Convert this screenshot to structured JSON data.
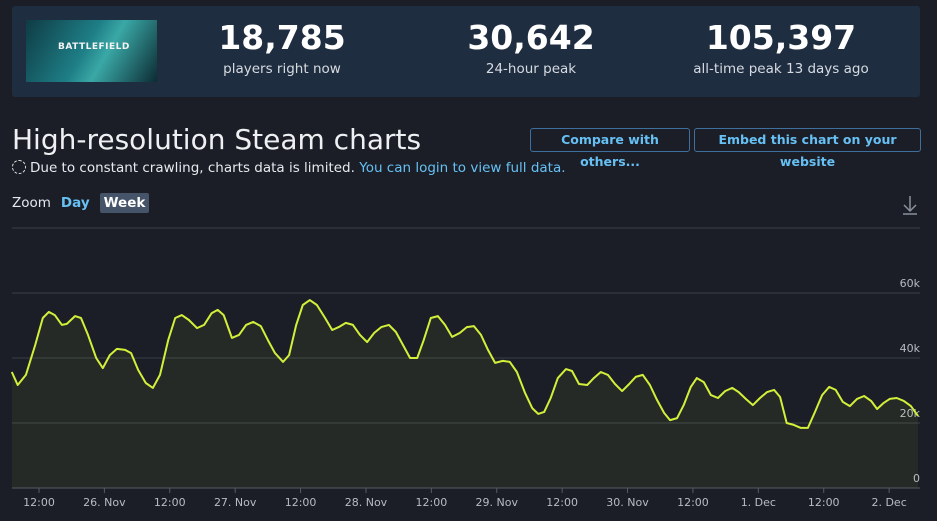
{
  "header": {
    "image_text": "BATTLEFIELD",
    "stats": [
      {
        "value": "18,785",
        "label": "players right now"
      },
      {
        "value": "30,642",
        "label": "24-hour peak"
      },
      {
        "value": "105,397",
        "label": "all-time peak 13 days ago"
      }
    ]
  },
  "title": "High-resolution Steam charts",
  "buttons": [
    "Compare with others...",
    "Embed this chart on your website"
  ],
  "notice": {
    "text": "Due to constant crawling, charts data is limited.",
    "link": "You can login to view full data."
  },
  "zoom": {
    "label": "Zoom",
    "options": [
      "Day",
      "Week"
    ]
  },
  "chart_data": {
    "type": "line",
    "color": "#d2f03a",
    "x": [
      7.0,
      8.1,
      9.6,
      11.3,
      12.7,
      13.8,
      14.9,
      16.2,
      17.1,
      18.6,
      19.7,
      21.0,
      22.5,
      23.7,
      25.0,
      26.3,
      27.8,
      28.9,
      30.2,
      31.6,
      32.9,
      34.2,
      35.7,
      37.0,
      38.2,
      39.5,
      41.0,
      42.3,
      43.7,
      44.8,
      45.9,
      47.4,
      48.7,
      50.0,
      51.3,
      52.7,
      54.0,
      55.3,
      56.8,
      57.9,
      59.2,
      60.4,
      61.7,
      63.0,
      64.5,
      65.8,
      67.0,
      68.3,
      69.6,
      70.9,
      72.2,
      73.5,
      74.8,
      76.2,
      77.5,
      78.8,
      80.1,
      81.4,
      82.6,
      83.9,
      85.2,
      86.5,
      87.8,
      89.2,
      90.5,
      91.8,
      93.1,
      94.4,
      95.7,
      97.1,
      98.4,
      99.7,
      101.2,
      102.5,
      103.6,
      104.7,
      105.9,
      107.2,
      108.7,
      109.8,
      111.1,
      112.6,
      113.8,
      115.1,
      116.4,
      117.7,
      119.0,
      120.3,
      121.5,
      122.8,
      124.1,
      125.4,
      126.7,
      127.8,
      129.1,
      130.3,
      131.6,
      132.7,
      134.0,
      135.3,
      136.6,
      137.9,
      139.2,
      140.4,
      141.7,
      143.0,
      144.3,
      145.6,
      146.9,
      148.0,
      149.2,
      150.5,
      151.8,
      153.1,
      154.4,
      155.7,
      157.0,
      158.2,
      159.5,
      160.8,
      162.1,
      163.4,
      164.7,
      165.8,
      167.0,
      168.1,
      169.4,
      170.7,
      172.0,
      173.3
    ],
    "values": [
      35700,
      31700,
      34800,
      44000,
      52300,
      54200,
      53200,
      50200,
      50500,
      52900,
      52300,
      47100,
      40000,
      36900,
      40900,
      42800,
      42500,
      41500,
      36300,
      32300,
      30800,
      34800,
      45500,
      52300,
      53200,
      51700,
      49200,
      50200,
      53800,
      54800,
      53200,
      46200,
      47100,
      50200,
      51100,
      49800,
      45500,
      41500,
      38800,
      40900,
      50200,
      56300,
      57800,
      56300,
      52300,
      48600,
      49500,
      50800,
      50200,
      47100,
      44900,
      47700,
      49500,
      50200,
      48000,
      44000,
      40000,
      40000,
      45500,
      52300,
      52900,
      50200,
      46500,
      47700,
      49500,
      49800,
      47100,
      42500,
      38500,
      39100,
      38800,
      35700,
      29200,
      24600,
      22800,
      23400,
      27700,
      33800,
      36600,
      36000,
      32000,
      31700,
      33800,
      35700,
      34800,
      32000,
      29800,
      32000,
      34200,
      34800,
      31700,
      27100,
      23100,
      20900,
      21500,
      25500,
      31100,
      33800,
      32600,
      28600,
      27700,
      29800,
      30800,
      29500,
      27400,
      25500,
      27700,
      29500,
      30200,
      28000,
      20000,
      19400,
      18500,
      18500,
      23400,
      28600,
      31100,
      30200,
      26500,
      25200,
      27400,
      28300,
      26800,
      24300,
      26200,
      27400,
      27700,
      26800,
      25200,
      22200
    ],
    "xlim": [
      7.0,
      173.3
    ],
    "xticks": [
      {
        "value": 12,
        "label": "12:00"
      },
      {
        "value": 24,
        "label": "26. Nov"
      },
      {
        "value": 36,
        "label": "12:00"
      },
      {
        "value": 48,
        "label": "27. Nov"
      },
      {
        "value": 60,
        "label": "12:00"
      },
      {
        "value": 72,
        "label": "28. Nov"
      },
      {
        "value": 84,
        "label": "12:00"
      },
      {
        "value": 96,
        "label": "29. Nov"
      },
      {
        "value": 108,
        "label": "12:00"
      },
      {
        "value": 120,
        "label": "30. Nov"
      },
      {
        "value": 132,
        "label": "12:00"
      },
      {
        "value": 144,
        "label": "1. Dec"
      },
      {
        "value": 156,
        "label": "12:00"
      },
      {
        "value": 168,
        "label": "2. Dec"
      }
    ],
    "ylim": [
      0,
      80000
    ],
    "yticks": [
      0,
      {
        "value": 20000,
        "label": "20k"
      },
      {
        "value": 40000,
        "label": "40k"
      },
      {
        "value": 60000,
        "label": "60k"
      }
    ],
    "grid": true
  }
}
